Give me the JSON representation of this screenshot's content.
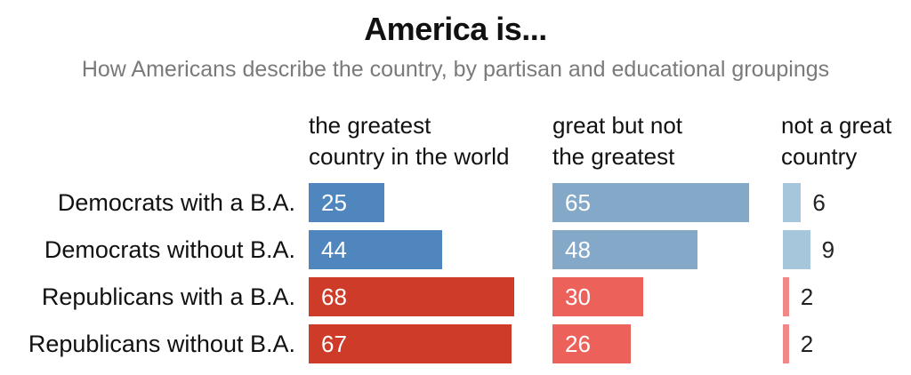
{
  "chart_data": {
    "type": "bar",
    "title": "America is...",
    "subtitle": "How Americans describe the country, by partisan and educational groupings",
    "categories": [
      "Democrats with a B.A.",
      "Democrats without B.A.",
      "Republicans with a B.A.",
      "Republicans without B.A."
    ],
    "series": [
      {
        "name": "the greatest country in the world",
        "header_lines": [
          "the greatest",
          "country in the world"
        ],
        "values": [
          25,
          44,
          68,
          67
        ],
        "colors": [
          "#4f86bd",
          "#4f86bd",
          "#cf3b29",
          "#cf3b29"
        ]
      },
      {
        "name": "great but not the greatest",
        "header_lines": [
          "great but not",
          "the greatest"
        ],
        "values": [
          65,
          48,
          30,
          26
        ],
        "colors": [
          "#84a9c8",
          "#84a9c8",
          "#ec625a",
          "#ec625a"
        ]
      },
      {
        "name": "not a great country",
        "header_lines": [
          "not a great",
          "country"
        ],
        "values": [
          6,
          9,
          2,
          2
        ],
        "colors": [
          "#a6c6dc",
          "#a6c6dc",
          "#f08888",
          "#f08888"
        ]
      }
    ],
    "xlim": [
      0,
      100
    ],
    "unit": "percent",
    "value_label_position": "inside bar; outside when bar is too short"
  }
}
